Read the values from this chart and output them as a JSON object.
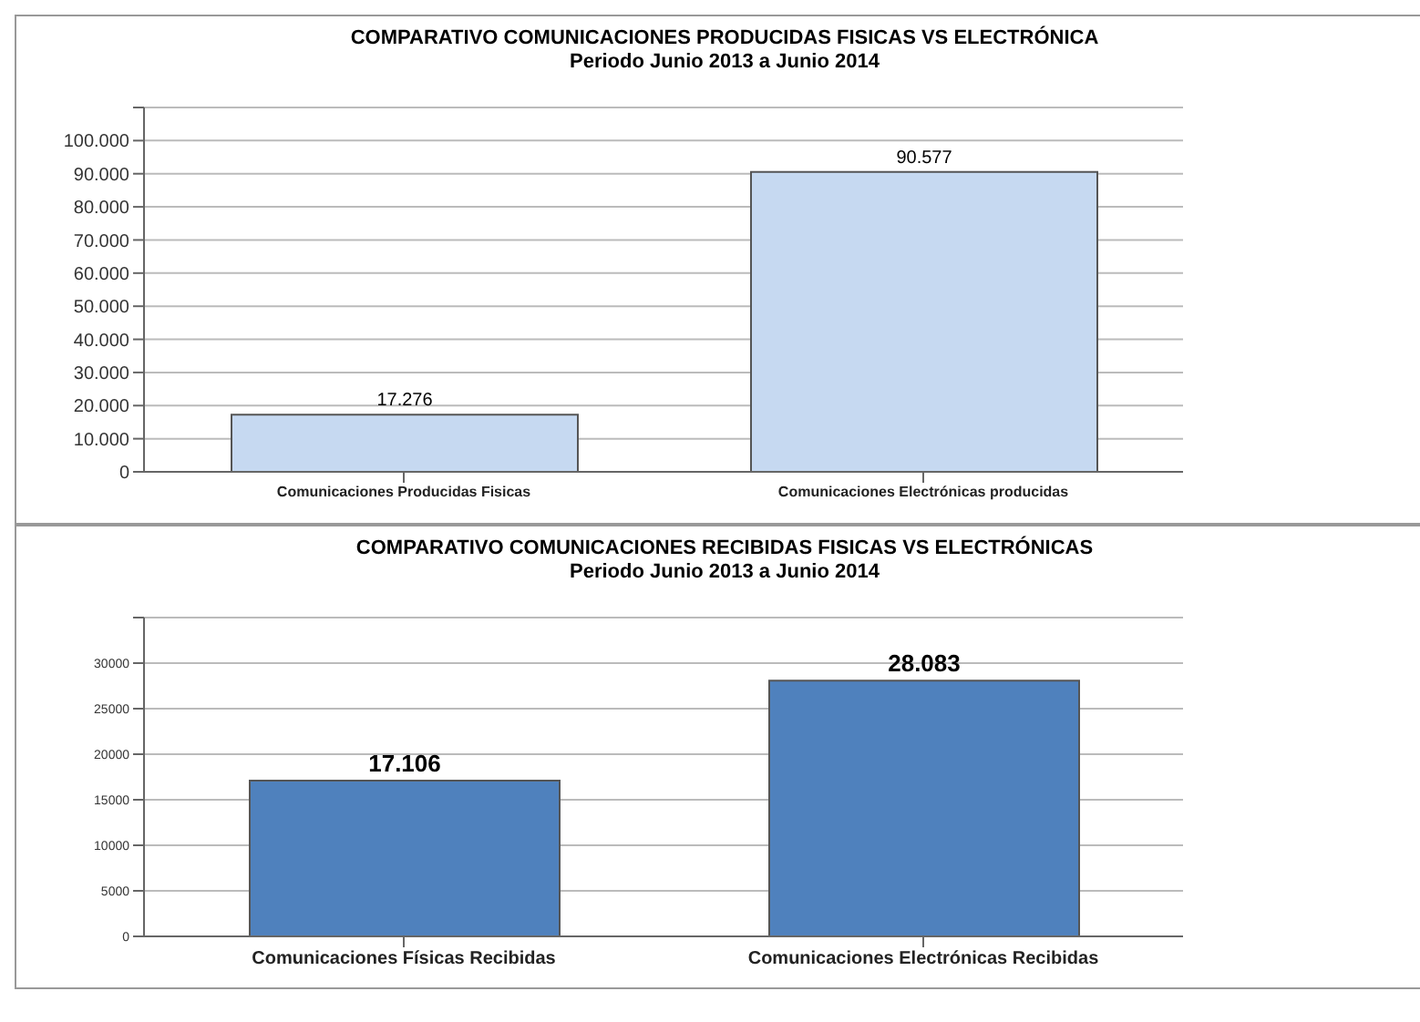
{
  "chart_data": [
    {
      "type": "bar",
      "title": "COMPARATIVO  COMUNICACIONES PRODUCIDAS  FISICAS VS ELECTRÓNICA",
      "subtitle": "Periodo Junio 2013 a Junio 2014",
      "categories": [
        "Comunicaciones Producidas Fisicas",
        "Comunicaciones Electrónicas producidas"
      ],
      "values": [
        17276,
        90577
      ],
      "value_labels": [
        "17.276",
        "90.577"
      ],
      "color": "#c6d9f1",
      "ylim": [
        0,
        110000
      ],
      "yticks": [
        {
          "value": 0,
          "label": "0"
        },
        {
          "value": 10000,
          "label": "10.000"
        },
        {
          "value": 20000,
          "label": "20.000"
        },
        {
          "value": 30000,
          "label": "30.000"
        },
        {
          "value": 40000,
          "label": "40.000"
        },
        {
          "value": 50000,
          "label": "50.000"
        },
        {
          "value": 60000,
          "label": "60.000"
        },
        {
          "value": 70000,
          "label": "70.000"
        },
        {
          "value": 80000,
          "label": "80.000"
        },
        {
          "value": 90000,
          "label": "90.000"
        },
        {
          "value": 100000,
          "label": "100.000"
        },
        {
          "value": 110000,
          "label": null
        }
      ],
      "grid": "y"
    },
    {
      "type": "bar",
      "title": "COMPARATIVO  COMUNICACIONES RECIBIDAS  FISICAS VS ELECTRÓNICAS",
      "subtitle": "Periodo Junio 2013 a Junio 2014",
      "categories": [
        "Comunicaciones Físicas Recibidas",
        "Comunicaciones Electrónicas Recibidas"
      ],
      "values": [
        17106,
        28083
      ],
      "value_labels": [
        "17.106",
        "28.083"
      ],
      "color": "#4f81bd",
      "ylim": [
        0,
        35000
      ],
      "yticks": [
        0,
        5000,
        10000,
        15000,
        20000,
        25000,
        30000,
        {
          "value": 35000,
          "label": null
        }
      ],
      "grid": "y"
    }
  ]
}
